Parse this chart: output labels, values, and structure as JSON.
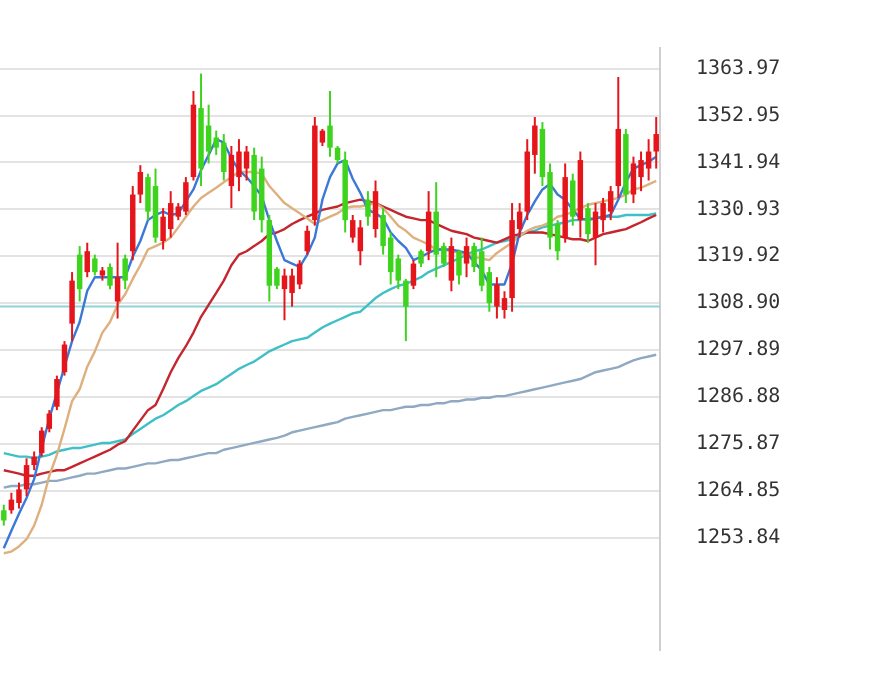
{
  "chart_data": {
    "type": "candlestick",
    "categories": [
      null,
      null,
      null,
      null,
      null,
      null,
      null,
      null,
      null,
      null,
      null,
      null,
      null,
      null,
      null,
      null,
      null,
      null,
      null,
      null,
      null,
      null,
      null,
      null,
      null,
      null,
      null,
      null,
      null,
      null,
      null,
      null,
      null,
      null,
      null,
      null,
      null,
      null,
      null,
      null,
      null,
      null,
      null,
      null,
      null,
      null,
      null,
      null,
      null,
      null,
      null,
      null,
      null,
      null,
      null,
      null,
      null,
      null,
      null,
      null,
      null,
      null,
      null,
      null,
      null,
      null,
      null,
      null,
      null,
      null,
      null,
      null,
      null,
      null,
      null,
      null,
      null,
      null,
      null,
      null,
      null,
      null,
      null,
      null,
      null,
      null,
      null
    ],
    "ohlc": [
      [
        1260.3,
        1261.6,
        1256.7,
        1257.9
      ],
      [
        1260.3,
        1264.4,
        1259.5,
        1262.8
      ],
      [
        1262.0,
        1266.8,
        1260.7,
        1265.2
      ],
      [
        1265.2,
        1272.5,
        1263.6,
        1270.9
      ],
      [
        1270.9,
        1274.1,
        1269.7,
        1272.9
      ],
      [
        1273.7,
        1279.8,
        1272.9,
        1279.0
      ],
      [
        1279.4,
        1283.8,
        1278.6,
        1283.0
      ],
      [
        1284.6,
        1291.9,
        1283.8,
        1291.1
      ],
      [
        1292.7,
        1300.0,
        1291.9,
        1299.2
      ],
      [
        1304.1,
        1316.2,
        1300.0,
        1314.2
      ],
      [
        1320.3,
        1322.3,
        1309.3,
        1312.2
      ],
      [
        1316.2,
        1323.1,
        1315.0,
        1321.1
      ],
      [
        1319.4,
        1320.3,
        1315.4,
        1316.2
      ],
      [
        1315.4,
        1317.4,
        1314.2,
        1316.6
      ],
      [
        1317.4,
        1318.2,
        1312.2,
        1313.0
      ],
      [
        1309.3,
        1323.1,
        1305.3,
        1315.0
      ],
      [
        1319.4,
        1320.3,
        1312.2,
        1314.2
      ],
      [
        1321.1,
        1336.4,
        1319.0,
        1334.4
      ],
      [
        1334.4,
        1341.3,
        1332.4,
        1339.7
      ],
      [
        1338.5,
        1339.3,
        1328.4,
        1330.4
      ],
      [
        1336.4,
        1340.5,
        1323.1,
        1324.3
      ],
      [
        1323.5,
        1331.2,
        1321.5,
        1329.2
      ],
      [
        1326.3,
        1335.2,
        1324.3,
        1332.4
      ],
      [
        1329.2,
        1332.4,
        1328.4,
        1331.6
      ],
      [
        1330.4,
        1338.5,
        1329.6,
        1337.3
      ],
      [
        1338.5,
        1358.7,
        1337.7,
        1355.5
      ],
      [
        1354.7,
        1362.8,
        1336.4,
        1340.5
      ],
      [
        1350.6,
        1355.5,
        1341.7,
        1344.5
      ],
      [
        1347.8,
        1349.4,
        1343.7,
        1345.4
      ],
      [
        1346.6,
        1348.6,
        1337.7,
        1339.7
      ],
      [
        1336.4,
        1345.8,
        1331.2,
        1343.7
      ],
      [
        1338.5,
        1347.4,
        1335.2,
        1344.5
      ],
      [
        1340.5,
        1345.8,
        1337.7,
        1344.5
      ],
      [
        1343.7,
        1345.4,
        1328.4,
        1330.4
      ],
      [
        1340.5,
        1343.3,
        1325.5,
        1328.4
      ],
      [
        1328.4,
        1329.6,
        1309.3,
        1313.0
      ],
      [
        1317.0,
        1317.4,
        1312.2,
        1313.0
      ],
      [
        1312.2,
        1317.0,
        1304.9,
        1315.4
      ],
      [
        1311.3,
        1317.0,
        1308.1,
        1315.4
      ],
      [
        1313.3,
        1319.0,
        1312.2,
        1318.2
      ],
      [
        1321.1,
        1327.1,
        1320.3,
        1325.9
      ],
      [
        1328.4,
        1352.6,
        1327.1,
        1350.6
      ],
      [
        1346.6,
        1349.8,
        1345.8,
        1349.4
      ],
      [
        1350.6,
        1358.7,
        1343.3,
        1345.4
      ],
      [
        1345.4,
        1345.8,
        1341.7,
        1342.5
      ],
      [
        1342.5,
        1344.5,
        1325.5,
        1328.4
      ],
      [
        1324.3,
        1329.6,
        1323.1,
        1328.4
      ],
      [
        1321.1,
        1328.4,
        1317.8,
        1326.7
      ],
      [
        1333.2,
        1335.2,
        1327.1,
        1329.2
      ],
      [
        1326.3,
        1337.7,
        1324.3,
        1335.2
      ],
      [
        1329.6,
        1331.2,
        1320.3,
        1322.3
      ],
      [
        1324.3,
        1325.5,
        1313.3,
        1316.2
      ],
      [
        1319.4,
        1320.3,
        1312.2,
        1314.2
      ],
      [
        1314.2,
        1314.6,
        1300.0,
        1308.1
      ],
      [
        1313.0,
        1319.0,
        1312.2,
        1318.2
      ],
      [
        1321.1,
        1321.5,
        1317.4,
        1318.2
      ],
      [
        1321.1,
        1335.2,
        1319.0,
        1330.4
      ],
      [
        1330.4,
        1337.3,
        1315.0,
        1320.3
      ],
      [
        1322.3,
        1323.1,
        1317.4,
        1318.2
      ],
      [
        1314.2,
        1324.3,
        1311.7,
        1322.3
      ],
      [
        1321.1,
        1321.5,
        1313.3,
        1315.4
      ],
      [
        1318.2,
        1324.3,
        1315.0,
        1322.3
      ],
      [
        1322.3,
        1323.1,
        1316.2,
        1317.4
      ],
      [
        1321.1,
        1324.3,
        1311.7,
        1313.0
      ],
      [
        1316.2,
        1317.4,
        1306.9,
        1308.9
      ],
      [
        1308.1,
        1315.0,
        1305.3,
        1313.3
      ],
      [
        1307.3,
        1311.7,
        1305.3,
        1310.1
      ],
      [
        1310.1,
        1332.4,
        1306.9,
        1328.4
      ],
      [
        1326.3,
        1332.4,
        1324.3,
        1330.4
      ],
      [
        1330.4,
        1347.4,
        1328.4,
        1344.5
      ],
      [
        1343.7,
        1352.6,
        1339.3,
        1350.6
      ],
      [
        1349.8,
        1351.4,
        1336.4,
        1338.5
      ],
      [
        1339.7,
        1341.7,
        1321.5,
        1324.3
      ],
      [
        1327.5,
        1328.4,
        1319.0,
        1321.1
      ],
      [
        1324.3,
        1341.7,
        1323.1,
        1338.5
      ],
      [
        1337.7,
        1339.3,
        1327.1,
        1329.2
      ],
      [
        1328.4,
        1344.5,
        1324.3,
        1342.5
      ],
      [
        1331.2,
        1332.4,
        1323.1,
        1325.1
      ],
      [
        1324.3,
        1332.4,
        1317.8,
        1330.4
      ],
      [
        1328.4,
        1333.6,
        1325.5,
        1332.4
      ],
      [
        1330.4,
        1336.4,
        1328.4,
        1335.2
      ],
      [
        1336.4,
        1362.0,
        1333.6,
        1349.8
      ],
      [
        1348.6,
        1349.8,
        1332.4,
        1334.4
      ],
      [
        1334.4,
        1343.3,
        1332.4,
        1341.7
      ],
      [
        1338.5,
        1344.5,
        1335.2,
        1342.5
      ],
      [
        1340.5,
        1347.4,
        1337.7,
        1344.5
      ],
      [
        1344.5,
        1352.6,
        1340.5,
        1348.6
      ]
    ],
    "colors": [
      "#3ed41e",
      "#e4161b",
      "#e4161b",
      "#e4161b",
      "#e4161b",
      "#e4161b",
      "#e4161b",
      "#e4161b",
      "#e4161b",
      "#e4161b",
      "#3ed41e",
      "#e4161b",
      "#3ed41e",
      "#e4161b",
      "#3ed41e",
      "#e4161b",
      "#3ed41e",
      "#e4161b",
      "#e4161b",
      "#3ed41e",
      "#3ed41e",
      "#e4161b",
      "#e4161b",
      "#e4161b",
      "#e4161b",
      "#e4161b",
      "#3ed41e",
      "#3ed41e",
      "#3ed41e",
      "#3ed41e",
      "#e4161b",
      "#e4161b",
      "#e4161b",
      "#3ed41e",
      "#3ed41e",
      "#3ed41e",
      "#3ed41e",
      "#e4161b",
      "#e4161b",
      "#e4161b",
      "#e4161b",
      "#e4161b",
      "#e4161b",
      "#3ed41e",
      "#3ed41e",
      "#3ed41e",
      "#e4161b",
      "#e4161b",
      "#3ed41e",
      "#e4161b",
      "#3ed41e",
      "#3ed41e",
      "#3ed41e",
      "#3ed41e",
      "#e4161b",
      "#3ed41e",
      "#e4161b",
      "#3ed41e",
      "#3ed41e",
      "#e4161b",
      "#3ed41e",
      "#e4161b",
      "#3ed41e",
      "#3ed41e",
      "#3ed41e",
      "#e4161b",
      "#e4161b",
      "#e4161b",
      "#e4161b",
      "#e4161b",
      "#e4161b",
      "#3ed41e",
      "#3ed41e",
      "#3ed41e",
      "#e4161b",
      "#3ed41e",
      "#e4161b",
      "#3ed41e",
      "#e4161b",
      "#e4161b",
      "#e4161b",
      "#e4161b",
      "#3ed41e",
      "#e4161b",
      "#e4161b",
      "#e4161b",
      "#e4161b"
    ],
    "series": [
      {
        "type": "line",
        "color": "#3b78d8",
        "values": [
          1251.4,
          1255.5,
          1259.5,
          1263.2,
          1267.6,
          1274.9,
          1281.8,
          1287.9,
          1294.0,
          1300.0,
          1304.5,
          1311.8,
          1315.0,
          1315.0,
          1315.0,
          1315.0,
          1315.0,
          1319.8,
          1323.5,
          1328.4,
          1329.6,
          1330.4,
          1329.6,
          1330.0,
          1332.8,
          1335.6,
          1340.1,
          1343.7,
          1347.4,
          1346.6,
          1342.9,
          1340.1,
          1338.5,
          1336.4,
          1334.0,
          1328.4,
          1323.5,
          1319.0,
          1318.2,
          1317.4,
          1320.3,
          1324.3,
          1333.2,
          1338.5,
          1341.7,
          1342.5,
          1338.1,
          1334.8,
          1330.8,
          1330.0,
          1328.8,
          1325.5,
          1323.5,
          1321.9,
          1319.0,
          1319.8,
          1320.7,
          1321.5,
          1321.5,
          1321.5,
          1321.1,
          1320.7,
          1318.6,
          1316.6,
          1313.3,
          1313.3,
          1313.3,
          1318.2,
          1325.5,
          1329.6,
          1332.8,
          1335.6,
          1336.9,
          1334.4,
          1333.2,
          1330.8,
          1328.8,
          1328.4,
          1328.8,
          1329.2,
          1329.6,
          1333.2,
          1337.3,
          1340.5,
          1341.3,
          1342.1,
          1343.3
        ]
      },
      {
        "type": "line",
        "color": "#deb07e",
        "values": [
          1250.2,
          1250.6,
          1251.8,
          1253.5,
          1256.7,
          1261.6,
          1268.4,
          1273.3,
          1279.4,
          1285.9,
          1288.7,
          1294.0,
          1297.6,
          1302.0,
          1304.5,
          1308.5,
          1311.0,
          1314.6,
          1317.8,
          1321.5,
          1322.3,
          1323.1,
          1324.3,
          1326.7,
          1329.2,
          1331.6,
          1333.6,
          1334.8,
          1336.0,
          1337.3,
          1338.5,
          1339.7,
          1339.7,
          1339.7,
          1339.3,
          1336.4,
          1334.4,
          1332.4,
          1331.2,
          1330.0,
          1328.8,
          1327.5,
          1328.4,
          1329.2,
          1330.0,
          1331.2,
          1331.6,
          1331.6,
          1332.0,
          1332.4,
          1331.2,
          1329.2,
          1327.1,
          1325.9,
          1324.3,
          1323.5,
          1322.7,
          1321.5,
          1321.5,
          1321.1,
          1320.7,
          1320.3,
          1319.8,
          1319.4,
          1319.0,
          1320.7,
          1321.9,
          1323.1,
          1324.7,
          1325.9,
          1326.7,
          1327.1,
          1327.9,
          1329.2,
          1329.6,
          1330.4,
          1331.2,
          1332.0,
          1332.4,
          1332.8,
          1333.2,
          1333.6,
          1334.4,
          1335.6,
          1336.0,
          1336.8,
          1337.6
        ]
      },
      {
        "type": "line",
        "color": "#c4262e",
        "values": [
          1269.7,
          1269.3,
          1268.9,
          1268.4,
          1268.4,
          1268.9,
          1269.3,
          1269.7,
          1269.7,
          1270.5,
          1271.3,
          1272.1,
          1272.9,
          1273.7,
          1274.5,
          1275.7,
          1276.5,
          1279.0,
          1281.4,
          1283.8,
          1285.0,
          1288.7,
          1292.7,
          1296.0,
          1298.8,
          1302.0,
          1305.7,
          1308.5,
          1311.3,
          1314.2,
          1317.8,
          1320.3,
          1321.1,
          1322.3,
          1323.5,
          1325.1,
          1325.5,
          1326.3,
          1327.5,
          1328.4,
          1329.2,
          1330.0,
          1330.8,
          1331.2,
          1331.6,
          1332.4,
          1332.8,
          1333.2,
          1332.8,
          1332.4,
          1331.6,
          1330.8,
          1330.0,
          1329.2,
          1328.8,
          1328.4,
          1328.4,
          1327.5,
          1326.7,
          1325.9,
          1325.5,
          1325.1,
          1324.3,
          1323.9,
          1323.5,
          1323.1,
          1323.9,
          1324.7,
          1325.1,
          1325.5,
          1325.5,
          1325.5,
          1325.1,
          1324.7,
          1324.3,
          1323.9,
          1323.9,
          1323.5,
          1324.3,
          1325.1,
          1325.5,
          1325.9,
          1326.3,
          1327.1,
          1327.9,
          1328.8,
          1329.6
        ]
      },
      {
        "type": "line",
        "color": "#3fbfc6",
        "values": [
          1273.7,
          1273.3,
          1272.9,
          1272.9,
          1272.5,
          1272.9,
          1273.3,
          1274.1,
          1274.5,
          1274.9,
          1274.9,
          1275.3,
          1275.7,
          1276.1,
          1276.1,
          1276.5,
          1276.9,
          1278.2,
          1279.4,
          1280.6,
          1281.8,
          1282.6,
          1283.8,
          1285.0,
          1285.9,
          1287.1,
          1288.3,
          1289.1,
          1289.9,
          1291.1,
          1292.3,
          1293.5,
          1294.4,
          1295.2,
          1296.4,
          1297.6,
          1298.4,
          1299.2,
          1300.0,
          1300.4,
          1300.8,
          1302.0,
          1303.2,
          1304.1,
          1304.9,
          1305.7,
          1306.5,
          1306.9,
          1308.5,
          1310.1,
          1311.3,
          1312.2,
          1313.0,
          1313.4,
          1314.2,
          1315.0,
          1316.2,
          1317.0,
          1317.8,
          1318.6,
          1319.4,
          1320.3,
          1321.1,
          1321.5,
          1322.3,
          1323.1,
          1323.5,
          1323.9,
          1324.7,
          1325.5,
          1325.9,
          1326.7,
          1327.1,
          1327.5,
          1327.9,
          1328.4,
          1328.4,
          1328.8,
          1328.8,
          1329.2,
          1329.2,
          1329.2,
          1329.6,
          1329.6,
          1329.6,
          1329.6,
          1330.0
        ]
      },
      {
        "type": "line",
        "color": "#8fa9c2",
        "values": [
          1265.6,
          1266.0,
          1266.0,
          1266.4,
          1266.4,
          1266.8,
          1267.2,
          1267.2,
          1267.6,
          1268.0,
          1268.4,
          1268.9,
          1268.9,
          1269.3,
          1269.7,
          1270.1,
          1270.1,
          1270.5,
          1270.9,
          1271.3,
          1271.3,
          1271.7,
          1272.1,
          1272.1,
          1272.5,
          1272.9,
          1273.3,
          1273.7,
          1273.7,
          1274.5,
          1274.9,
          1275.3,
          1275.7,
          1276.1,
          1276.5,
          1276.9,
          1277.3,
          1277.8,
          1278.6,
          1279.0,
          1279.4,
          1279.8,
          1280.2,
          1280.6,
          1281.0,
          1281.8,
          1282.2,
          1282.6,
          1283.0,
          1283.4,
          1283.8,
          1283.8,
          1284.2,
          1284.6,
          1284.6,
          1285.0,
          1285.0,
          1285.4,
          1285.4,
          1285.9,
          1285.9,
          1286.3,
          1286.3,
          1286.7,
          1286.7,
          1287.1,
          1287.1,
          1287.5,
          1287.9,
          1288.3,
          1288.7,
          1289.1,
          1289.5,
          1289.9,
          1290.3,
          1290.7,
          1291.1,
          1291.9,
          1292.7,
          1293.1,
          1293.5,
          1293.9,
          1294.7,
          1295.5,
          1296.0,
          1296.4,
          1296.8
        ]
      }
    ],
    "ylim": [
      1227.5,
      1368.8
    ],
    "yticks": [
      {
        "value": 1253.84,
        "label": "1253.84"
      },
      {
        "value": 1264.85,
        "label": "1264.85"
      },
      {
        "value": 1275.87,
        "label": "1275.87"
      },
      {
        "value": 1286.88,
        "label": "1286.88"
      },
      {
        "value": 1297.89,
        "label": "1297.89"
      },
      {
        "value": 1308.9,
        "label": "1308.90"
      },
      {
        "value": 1319.92,
        "label": "1319.92"
      },
      {
        "value": 1330.93,
        "label": "1330.93"
      },
      {
        "value": 1341.94,
        "label": "1341.94"
      },
      {
        "value": 1352.95,
        "label": "1352.95"
      },
      {
        "value": 1363.97,
        "label": "1363.97"
      }
    ],
    "ref_lines": [
      {
        "axis": "y",
        "value": 1308.1,
        "color": "#8fd3d8"
      }
    ],
    "grid": "y",
    "tick_labels": "y",
    "legend": false
  }
}
